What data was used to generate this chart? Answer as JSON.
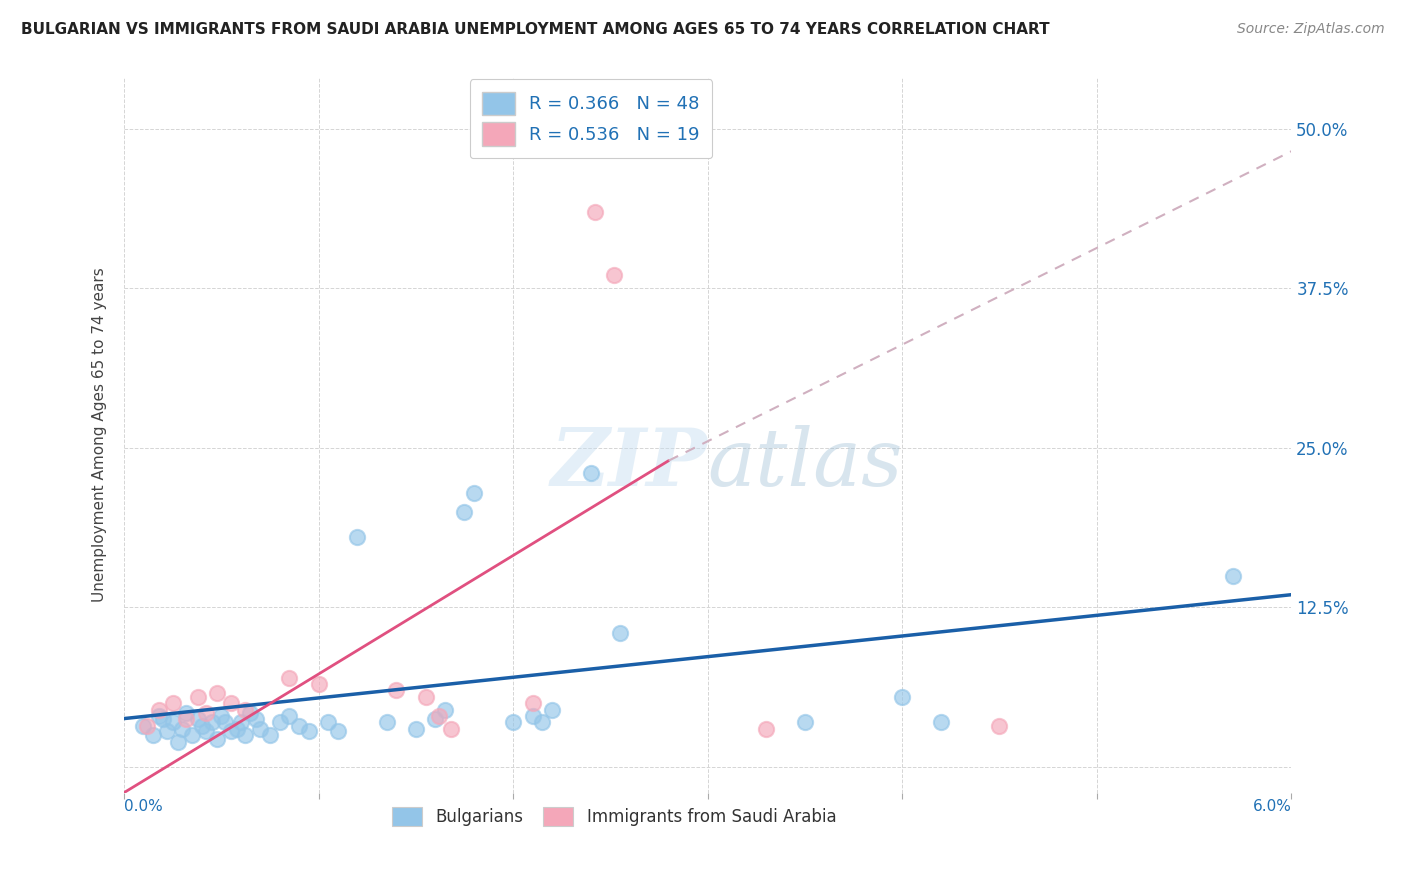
{
  "title": "BULGARIAN VS IMMIGRANTS FROM SAUDI ARABIA UNEMPLOYMENT AMONG AGES 65 TO 74 YEARS CORRELATION CHART",
  "source": "Source: ZipAtlas.com",
  "ylabel": "Unemployment Among Ages 65 to 74 years",
  "xlim": [
    0.0,
    6.0
  ],
  "ylim": [
    -2.0,
    54.0
  ],
  "yticks": [
    0.0,
    12.5,
    25.0,
    37.5,
    50.0
  ],
  "ytick_labels": [
    "",
    "12.5%",
    "25.0%",
    "37.5%",
    "50.0%"
  ],
  "xticks": [
    0.0,
    1.0,
    2.0,
    3.0,
    4.0,
    5.0,
    6.0
  ],
  "bg_color": "#ffffff",
  "grid_color": "#d5d5d5",
  "blue_color": "#93c5e8",
  "pink_color": "#f4a7b9",
  "blue_line_color": "#2171b5",
  "pink_line_color": "#e8608a",
  "blue_trendline_color": "#1a5fa8",
  "pink_trendline_color": "#e05080",
  "dashed_line_color": "#d0b0c0",
  "blue_scatter": [
    [
      0.1,
      3.2
    ],
    [
      0.15,
      2.5
    ],
    [
      0.18,
      4.0
    ],
    [
      0.2,
      3.8
    ],
    [
      0.22,
      2.8
    ],
    [
      0.25,
      3.5
    ],
    [
      0.28,
      2.0
    ],
    [
      0.3,
      3.0
    ],
    [
      0.32,
      4.2
    ],
    [
      0.35,
      2.5
    ],
    [
      0.38,
      3.8
    ],
    [
      0.4,
      3.2
    ],
    [
      0.42,
      2.8
    ],
    [
      0.45,
      3.5
    ],
    [
      0.48,
      2.2
    ],
    [
      0.5,
      4.0
    ],
    [
      0.52,
      3.5
    ],
    [
      0.55,
      2.8
    ],
    [
      0.58,
      3.0
    ],
    [
      0.6,
      3.5
    ],
    [
      0.62,
      2.5
    ],
    [
      0.65,
      4.2
    ],
    [
      0.68,
      3.8
    ],
    [
      0.7,
      3.0
    ],
    [
      0.75,
      2.5
    ],
    [
      0.8,
      3.5
    ],
    [
      0.85,
      4.0
    ],
    [
      0.9,
      3.2
    ],
    [
      0.95,
      2.8
    ],
    [
      1.05,
      3.5
    ],
    [
      1.1,
      2.8
    ],
    [
      1.2,
      18.0
    ],
    [
      1.35,
      3.5
    ],
    [
      1.5,
      3.0
    ],
    [
      1.6,
      3.8
    ],
    [
      1.65,
      4.5
    ],
    [
      1.75,
      20.0
    ],
    [
      1.8,
      21.5
    ],
    [
      2.0,
      3.5
    ],
    [
      2.1,
      4.0
    ],
    [
      2.15,
      3.5
    ],
    [
      2.2,
      4.5
    ],
    [
      2.4,
      23.0
    ],
    [
      2.55,
      10.5
    ],
    [
      3.5,
      3.5
    ],
    [
      4.0,
      5.5
    ],
    [
      4.2,
      3.5
    ],
    [
      5.7,
      15.0
    ]
  ],
  "pink_scatter": [
    [
      0.12,
      3.2
    ],
    [
      0.18,
      4.5
    ],
    [
      0.25,
      5.0
    ],
    [
      0.32,
      3.8
    ],
    [
      0.38,
      5.5
    ],
    [
      0.42,
      4.2
    ],
    [
      0.48,
      5.8
    ],
    [
      0.55,
      5.0
    ],
    [
      0.62,
      4.5
    ],
    [
      0.85,
      7.0
    ],
    [
      1.0,
      6.5
    ],
    [
      1.4,
      6.0
    ],
    [
      1.55,
      5.5
    ],
    [
      1.62,
      4.0
    ],
    [
      1.68,
      3.0
    ],
    [
      2.1,
      5.0
    ],
    [
      2.42,
      43.5
    ],
    [
      2.52,
      38.5
    ],
    [
      3.3,
      3.0
    ],
    [
      4.5,
      3.2
    ]
  ],
  "blue_trendline": [
    [
      0.0,
      3.8
    ],
    [
      6.0,
      13.5
    ]
  ],
  "pink_trendline_solid": [
    [
      0.0,
      -2.0
    ],
    [
      2.8,
      24.0
    ]
  ],
  "pink_trendline_dashed": [
    [
      2.8,
      24.0
    ],
    [
      6.5,
      52.0
    ]
  ]
}
